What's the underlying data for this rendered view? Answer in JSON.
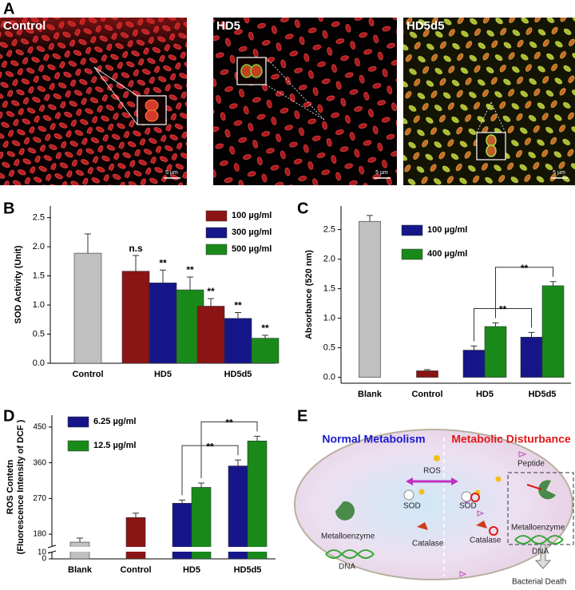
{
  "figure_a": {
    "panel": "A",
    "images": [
      {
        "label": "Control",
        "scale": "5 µm"
      },
      {
        "label": "HD5",
        "scale": "5 µm"
      },
      {
        "label": "HD5d5",
        "scale": "5 µm"
      }
    ]
  },
  "chart_data": [
    {
      "panel": "B",
      "type": "bar",
      "ylabel": [
        "SOD Activity (Unit)"
      ],
      "categories": [
        "Control",
        "HD5",
        "HD5d5"
      ],
      "ylim": [
        0,
        2.7
      ],
      "yticks": [
        {
          "value": 0,
          "label": "0.0"
        },
        0.5,
        {
          "value": 1,
          "label": "1.0"
        },
        1.5,
        {
          "value": 2,
          "label": "2.0"
        },
        2.5
      ],
      "legend": "upper right",
      "series": [
        {
          "color": "#c0c0c0",
          "values": [
            1.89,
            null,
            null
          ],
          "errors": [
            0.33,
            null,
            null
          ]
        },
        {
          "name": "100 µg/ml",
          "color": "#8b1414",
          "values": [
            null,
            1.58,
            0.98
          ],
          "errors": [
            null,
            0.27,
            0.13
          ],
          "annotations": [
            null,
            "n.s",
            "**"
          ]
        },
        {
          "name": "300 µg/ml",
          "color": "#16168a",
          "values": [
            null,
            1.38,
            0.77
          ],
          "errors": [
            null,
            0.22,
            0.1
          ],
          "annotations": [
            null,
            "**",
            "**"
          ]
        },
        {
          "name": "500 µg/ml",
          "color": "#198a19",
          "values": [
            null,
            1.26,
            0.43
          ],
          "errors": [
            null,
            0.22,
            0.05
          ],
          "annotations": [
            null,
            "**",
            "**"
          ]
        }
      ]
    },
    {
      "panel": "C",
      "type": "bar",
      "ylabel": [
        "Absorbance (520 nm)"
      ],
      "categories": [
        "Blank",
        "Control",
        "HD5",
        "HD5d5"
      ],
      "ylim": [
        -0.1,
        2.9
      ],
      "yticks": [
        {
          "value": 0,
          "label": "0.0"
        },
        0.5,
        {
          "value": 1,
          "label": "1.0"
        },
        1.5,
        {
          "value": 2,
          "label": "2.0"
        },
        2.5
      ],
      "legend": "upper center",
      "series": [
        {
          "color": "#c0c0c0",
          "values": [
            2.64,
            null,
            null,
            null
          ],
          "errors": [
            0.1,
            null,
            null,
            null
          ]
        },
        {
          "color": "#8b1414",
          "values": [
            null,
            0.11,
            null,
            null
          ],
          "errors": [
            null,
            0.02,
            null,
            null
          ]
        },
        {
          "name": "100 µg/ml",
          "color": "#16168a",
          "values": [
            null,
            null,
            0.46,
            0.68
          ],
          "errors": [
            null,
            null,
            0.07,
            0.08
          ]
        },
        {
          "name": "400 µg/ml",
          "color": "#198a19",
          "values": [
            null,
            null,
            0.86,
            1.55
          ],
          "errors": [
            null,
            null,
            0.06,
            0.07
          ]
        }
      ],
      "comparisons": [
        {
          "series": 2,
          "categories": [
            2,
            3
          ],
          "label": "**"
        },
        {
          "series": 3,
          "categories": [
            2,
            3
          ],
          "label": "**"
        }
      ]
    },
    {
      "panel": "D",
      "type": "bar",
      "ylabel": [
        "ROS Contetn",
        "(Fluorescence Intensity of DCF )"
      ],
      "categories": [
        "Blank",
        "Control",
        "HD5",
        "HD5d5"
      ],
      "ylim": [
        0,
        480
      ],
      "ybreak": [
        10,
        150
      ],
      "yticks": [
        0,
        10,
        180,
        270,
        360,
        450
      ],
      "legend": "upper left",
      "series": [
        {
          "color": "#c0c0c0",
          "values": [
            160,
            null,
            null,
            null
          ],
          "errors": [
            10,
            null,
            null,
            null
          ]
        },
        {
          "color": "#8b1414",
          "values": [
            null,
            222,
            null,
            null
          ],
          "errors": [
            null,
            11,
            null,
            null
          ]
        },
        {
          "name": "6.25 µg/ml",
          "color": "#16168a",
          "values": [
            null,
            null,
            258,
            352
          ],
          "errors": [
            null,
            null,
            8,
            15
          ]
        },
        {
          "name": "12.5 µg/ml",
          "color": "#198a19",
          "values": [
            null,
            null,
            298,
            415
          ],
          "errors": [
            null,
            null,
            11,
            12
          ]
        }
      ],
      "comparisons": [
        {
          "series": 2,
          "categories": [
            2,
            3
          ],
          "label": "**"
        },
        {
          "series": 3,
          "categories": [
            2,
            3
          ],
          "label": "**"
        }
      ]
    }
  ],
  "diagram": {
    "panel": "E",
    "left_title": "Normal Metabolism",
    "right_title": "Metabolic Disturbance",
    "ros": "ROS",
    "peptide": "Peptide",
    "sod": [
      "SOD",
      "SOD"
    ],
    "metalloenzyme": [
      "Metalloenzyme",
      "Metalloenzyme"
    ],
    "catalase": [
      "Catalase",
      "Catalase"
    ],
    "dna": [
      "DNA",
      "DNA"
    ],
    "outcome": "Bacterial Death"
  }
}
